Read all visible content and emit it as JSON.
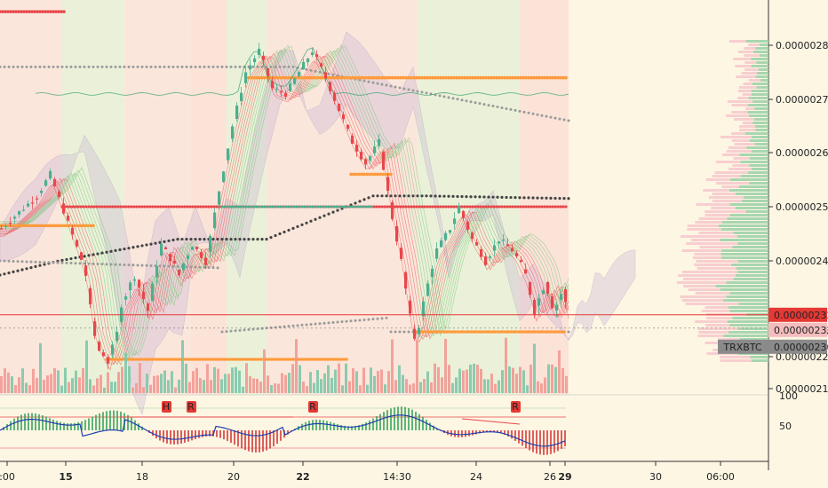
{
  "chart_data": {
    "type": "candlestick",
    "symbol_tag": "TRXBTC",
    "price_axis": {
      "ticks": [
        "0.00000280",
        "0.00000270",
        "0.00000260",
        "0.00000250",
        "0.00000240",
        "0.00000230",
        "0.00000222",
        "0.00000216"
      ],
      "ylim": [
        2.15e-06,
        2.85e-06
      ]
    },
    "price_labels": [
      {
        "text": "0.00000232",
        "role": "last",
        "value": 2.324e-06,
        "bg": "#e53935",
        "color": "#ffffff"
      },
      {
        "text": "0.00000232",
        "role": "ref",
        "value": 2.316e-06,
        "bg": "#f4bdbd",
        "color": "#222222"
      },
      {
        "text": "0.00000230",
        "role": "level",
        "value": 2.3e-06,
        "bg": "#8a8a8a",
        "color": "#ffffff"
      }
    ],
    "oscillator_axis": {
      "ticks": [
        "100",
        "50"
      ]
    },
    "oscillator_markers": [
      "H",
      "R",
      "R",
      "R"
    ],
    "x_ticks": [
      ":00",
      "15",
      "18",
      "20",
      "22",
      "14:30",
      "24",
      "26",
      "29",
      "30",
      "06:00"
    ],
    "bold_x_ticks": [
      "15",
      "22",
      "29"
    ],
    "colors": {
      "up": "#4caf8f",
      "down": "#e8474a",
      "orange": "#ff9a3c",
      "background": "#fdf6e3"
    }
  }
}
